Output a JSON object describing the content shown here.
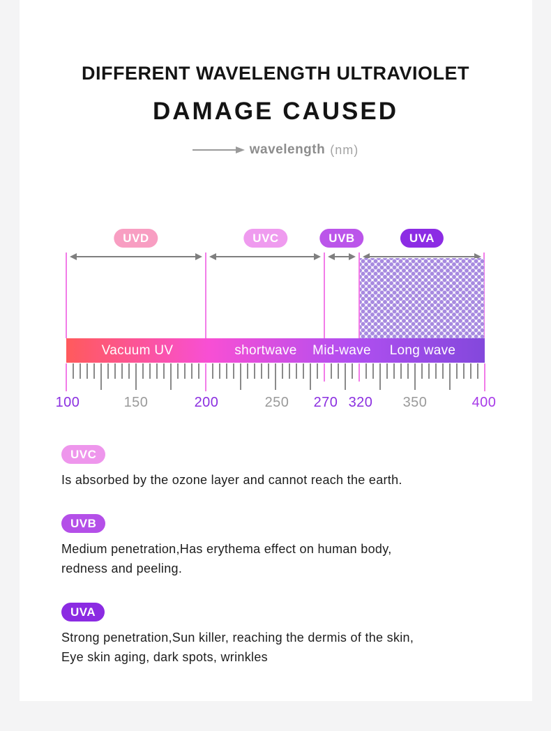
{
  "header": {
    "title_line1": "DIFFERENT WAVELENGTH ULTRAVIOLET",
    "title_line2": "DAMAGE CAUSED",
    "axis": {
      "icon": "right-arrow",
      "label": "wavelength",
      "unit": "(nm)"
    }
  },
  "colors": {
    "page_bg": "#f4f4f5",
    "card_bg": "#ffffff",
    "accent_magenta": "#f27ce8",
    "arrow_gray": "#7f7f7f",
    "tick_gray": "#8a8a8a",
    "text_dark": "#1d1d1d",
    "text_gray": "#9a9a9a"
  },
  "diagram": {
    "bands": [
      {
        "label": "UVD",
        "range_nm": [
          100,
          200
        ],
        "pill_color": "#f89ec2",
        "bar_label": "Vacuum UV"
      },
      {
        "label": "UVC",
        "range_nm": [
          200,
          270
        ],
        "pill_color": "#ef9bef",
        "bar_label": "shortwave"
      },
      {
        "label": "UVB",
        "range_nm": [
          270,
          320
        ],
        "pill_color": "#bb55ea",
        "bar_label": "Mid-wave"
      },
      {
        "label": "UVA",
        "range_nm": [
          320,
          400
        ],
        "pill_color": "#8c2ce4",
        "bar_label": "Long wave",
        "hatched": true
      }
    ],
    "bar_gradient": [
      "#ff5a5c",
      "#f84fd4",
      "#b14ff0",
      "#8348dc"
    ],
    "hatch_dot_color": "#a78ae0",
    "scale": {
      "accent_tick_color": "#f27ce8",
      "tick_labels": [
        {
          "text": "100",
          "color": "#8b2fe0"
        },
        {
          "text": "150",
          "color": "#9a9a9a"
        },
        {
          "text": "200",
          "color": "#8b2fe0"
        },
        {
          "text": "250",
          "color": "#9a9a9a"
        },
        {
          "text": "270",
          "color": "#8b2fe0"
        },
        {
          "text": "320",
          "color": "#8b2fe0"
        },
        {
          "text": "350",
          "color": "#9a9a9a"
        },
        {
          "text": "400",
          "color": "#a73ae8"
        }
      ]
    }
  },
  "sections": [
    {
      "pill": "UVC",
      "pill_color": "#ee96ec",
      "lines": [
        "Is absorbed by the ozone layer and cannot reach the earth."
      ]
    },
    {
      "pill": "UVB",
      "pill_color": "#b44fe8",
      "lines": [
        "Medium penetration,Has erythema effect on human body,",
        "redness and peeling."
      ]
    },
    {
      "pill": "UVA",
      "pill_color": "#8b2be2",
      "lines": [
        "Strong penetration,Sun killer, reaching the dermis of the skin,",
        "Eye skin aging, dark spots, wrinkles"
      ]
    }
  ]
}
